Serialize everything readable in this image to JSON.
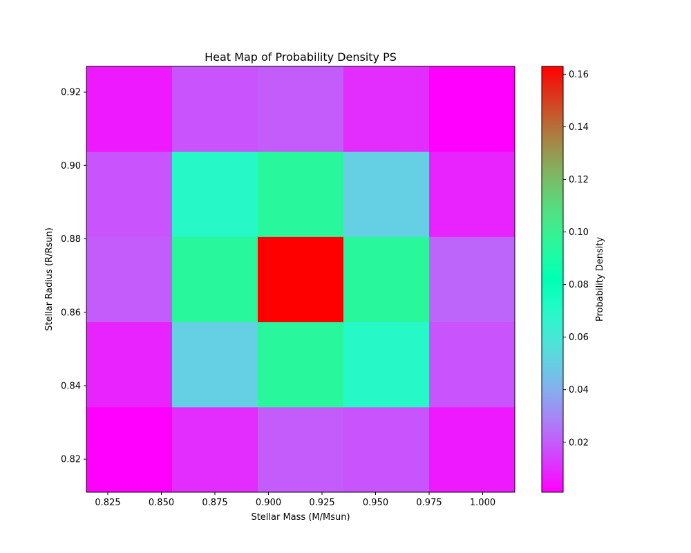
{
  "chart_data": {
    "type": "heatmap",
    "title": "Heat Map of Probability Density PS",
    "xlabel": "Stellar Mass (M/Msun)",
    "ylabel": "Stellar Radius (R/Rsun)",
    "colorbar_label": "Probability Density",
    "colormap": "rainbow",
    "xlim": [
      0.815,
      1.015
    ],
    "ylim": [
      0.811,
      0.927
    ],
    "x_ticks": [
      0.825,
      0.85,
      0.875,
      0.9,
      0.925,
      0.95,
      0.975,
      1.0
    ],
    "x_tick_labels": [
      "0.825",
      "0.850",
      "0.875",
      "0.900",
      "0.925",
      "0.950",
      "0.975",
      "1.000"
    ],
    "y_ticks": [
      0.82,
      0.84,
      0.86,
      0.88,
      0.9,
      0.92
    ],
    "y_tick_labels": [
      "0.82",
      "0.84",
      "0.86",
      "0.88",
      "0.90",
      "0.92"
    ],
    "x_edges": [
      0.815,
      0.855,
      0.895,
      0.935,
      0.975,
      1.015
    ],
    "y_edges": [
      0.811,
      0.8342,
      0.8574,
      0.8806,
      0.9038,
      0.927
    ],
    "values": [
      [
        0.001,
        0.01,
        0.02,
        0.018,
        0.006
      ],
      [
        0.008,
        0.05,
        0.095,
        0.07,
        0.018
      ],
      [
        0.02,
        0.095,
        0.163,
        0.095,
        0.022
      ],
      [
        0.018,
        0.07,
        0.095,
        0.05,
        0.008
      ],
      [
        0.006,
        0.018,
        0.02,
        0.01,
        0.001
      ]
    ],
    "colorbar_range": [
      0.001,
      0.163
    ],
    "colorbar_ticks": [
      0.02,
      0.04,
      0.06,
      0.08,
      0.1,
      0.12,
      0.14,
      0.16
    ],
    "colorbar_tick_labels": [
      "0.02",
      "0.04",
      "0.06",
      "0.08",
      "0.10",
      "0.12",
      "0.14",
      "0.16"
    ]
  }
}
